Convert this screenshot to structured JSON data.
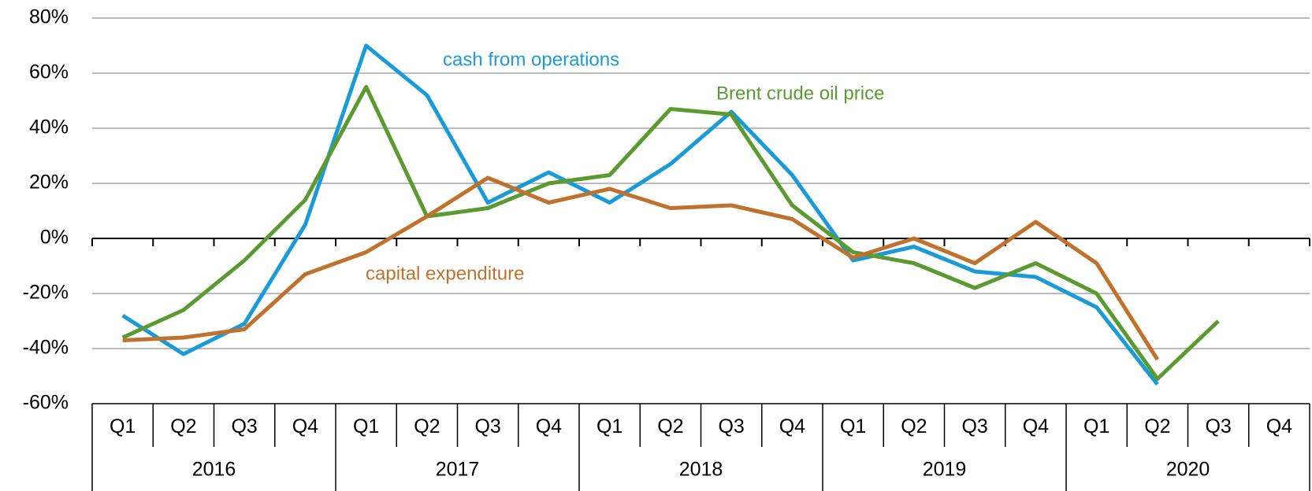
{
  "chart_data": {
    "type": "line",
    "categories": [
      "Q1",
      "Q2",
      "Q3",
      "Q4",
      "Q1",
      "Q2",
      "Q3",
      "Q4",
      "Q1",
      "Q2",
      "Q3",
      "Q4",
      "Q1",
      "Q2",
      "Q3",
      "Q4",
      "Q1",
      "Q2",
      "Q3",
      "Q4"
    ],
    "years": [
      "2016",
      "2017",
      "2018",
      "2019",
      "2020"
    ],
    "series": [
      {
        "name": "cash from operations",
        "color": "#1a9bd7",
        "values": [
          -28,
          -42,
          -31,
          5,
          70,
          52,
          13,
          24,
          13,
          27,
          46,
          23,
          -8,
          -3,
          -12,
          -14,
          -25,
          -53,
          null,
          null
        ]
      },
      {
        "name": "Brent crude oil price",
        "color": "#5b9a30",
        "values": [
          -36,
          -26,
          -8,
          14,
          55,
          8,
          11,
          20,
          23,
          47,
          45,
          12,
          -5,
          -9,
          -18,
          -9,
          -20,
          -51,
          -30,
          null
        ]
      },
      {
        "name": "capital expenditure",
        "color": "#c0712d",
        "values": [
          -37,
          -36,
          -33,
          -13,
          -5,
          8,
          22,
          13,
          18,
          11,
          12,
          7,
          -7,
          0,
          -9,
          6,
          -9,
          -44,
          null,
          null
        ]
      }
    ],
    "ylim": [
      -60,
      80
    ],
    "yticks": [
      {
        "value": -60,
        "label": "-60%"
      },
      {
        "value": -40,
        "label": "-40%"
      },
      {
        "value": -20,
        "label": "-20%"
      },
      {
        "value": 0,
        "label": "0%"
      },
      {
        "value": 20,
        "label": "20%"
      },
      {
        "value": 40,
        "label": "40%"
      },
      {
        "value": 60,
        "label": "60%"
      },
      {
        "value": 80,
        "label": "80%"
      }
    ],
    "grid": true
  }
}
